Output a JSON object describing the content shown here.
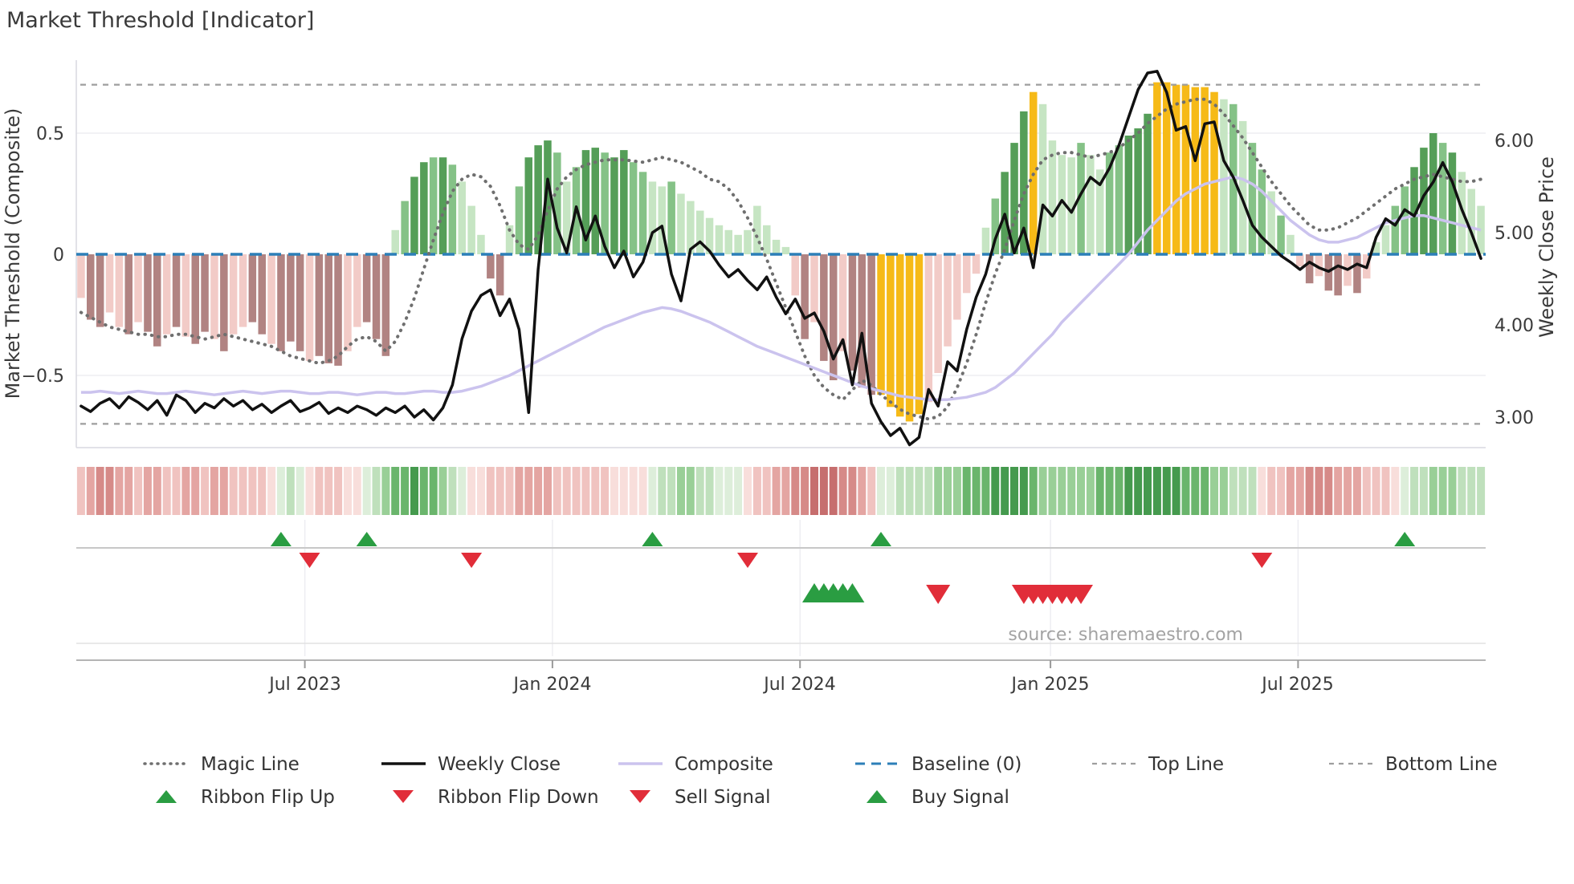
{
  "page": {
    "title": "Market Threshold [Indicator]",
    "source_note": "source: sharemaestro.com"
  },
  "axes": {
    "left_title": "Market Threshold (Composite)",
    "right_title": "Weekly Close Price",
    "left_ticks": [
      "0.5",
      "0",
      "−0.5"
    ],
    "right_ticks": [
      "6.00",
      "5.00",
      "4.00",
      "3.00"
    ],
    "x_ticks": [
      "Jul 2023",
      "Jan 2024",
      "Jul 2024",
      "Jan 2025",
      "Jul 2025"
    ]
  },
  "legend": {
    "rows": [
      [
        {
          "label": "Magic Line"
        },
        {
          "label": "Weekly Close"
        },
        {
          "label": "Composite"
        },
        {
          "label": "Baseline (0)"
        },
        {
          "label": "Top Line"
        },
        {
          "label": "Bottom Line"
        }
      ],
      [
        {
          "label": "Ribbon Flip Up"
        },
        {
          "label": "Ribbon Flip Down"
        },
        {
          "label": "Sell Signal"
        },
        {
          "label": "Buy Signal"
        }
      ]
    ]
  },
  "chart_data": {
    "type": "bar",
    "title": "Market Threshold [Indicator]",
    "n_weeks": 148,
    "x_range_note": "weekly data, approx Jan 2023 to Nov 2025",
    "x_tick_weeks": [
      23.5,
      49.5,
      75.5,
      101.8,
      127.8
    ],
    "x_tick_labels": [
      "Jul 2023",
      "Jan 2024",
      "Jul 2024",
      "Jan 2025",
      "Jul 2025"
    ],
    "left_axis": {
      "label": "Market Threshold (Composite)",
      "ticks": [
        0.5,
        0,
        -0.5
      ],
      "baseline": 0,
      "top_line": 0.7,
      "bottom_line": -0.7,
      "ylim": [
        -0.8,
        0.805
      ]
    },
    "right_axis": {
      "label": "Weekly Close Price",
      "ticks": [
        6.0,
        5.0,
        4.0,
        3.0
      ],
      "ylim": [
        2.67,
        6.87
      ]
    },
    "grid": "faint horizontal at 0.5 and -0.5; faint vertical in signal panel at x ticks",
    "legend_position": "bottom, two centered rows",
    "series": {
      "threshold_bars": {
        "values": [
          -0.18,
          -0.27,
          -0.3,
          -0.24,
          -0.3,
          -0.33,
          -0.28,
          -0.32,
          -0.38,
          -0.33,
          -0.3,
          -0.34,
          -0.37,
          -0.32,
          -0.35,
          -0.4,
          -0.33,
          -0.3,
          -0.28,
          -0.33,
          -0.37,
          -0.4,
          -0.36,
          -0.4,
          -0.44,
          -0.42,
          -0.45,
          -0.46,
          -0.4,
          -0.3,
          -0.28,
          -0.35,
          -0.42,
          0.1,
          0.22,
          0.32,
          0.38,
          0.4,
          0.4,
          0.37,
          0.3,
          0.2,
          0.08,
          -0.1,
          -0.17,
          0.12,
          0.28,
          0.4,
          0.45,
          0.47,
          0.42,
          0.3,
          0.36,
          0.43,
          0.44,
          0.42,
          0.4,
          0.43,
          0.38,
          0.34,
          0.3,
          0.28,
          0.3,
          0.25,
          0.22,
          0.18,
          0.15,
          0.12,
          0.1,
          0.08,
          0.1,
          0.2,
          0.12,
          0.06,
          0.03,
          -0.17,
          -0.35,
          -0.28,
          -0.44,
          -0.52,
          -0.4,
          -0.48,
          -0.55,
          -0.58,
          -0.58,
          -0.63,
          -0.67,
          -0.69,
          -0.66,
          -0.61,
          -0.49,
          -0.38,
          -0.27,
          -0.16,
          -0.08,
          0.11,
          0.23,
          0.34,
          0.46,
          0.59,
          0.67,
          0.62,
          0.47,
          0.41,
          0.4,
          0.46,
          0.41,
          0.35,
          0.42,
          0.45,
          0.49,
          0.52,
          0.58,
          0.71,
          0.71,
          0.7,
          0.7,
          0.69,
          0.69,
          0.67,
          0.64,
          0.62,
          0.55,
          0.46,
          0.35,
          0.26,
          0.16,
          0.08,
          -0.05,
          -0.12,
          -0.09,
          -0.15,
          -0.17,
          -0.13,
          -0.16,
          -0.1,
          0.05,
          0.12,
          0.2,
          0.28,
          0.36,
          0.44,
          0.5,
          0.46,
          0.42,
          0.34,
          0.27,
          0.2
        ],
        "colors": [
          "lp",
          "dp",
          "dp",
          "lp",
          "lp",
          "dp",
          "lp",
          "dp",
          "dp",
          "lp",
          "dp",
          "lp",
          "dp",
          "dp",
          "lp",
          "dp",
          "lp",
          "lp",
          "dp",
          "dp",
          "lp",
          "dp",
          "dp",
          "dp",
          "lp",
          "dp",
          "dp",
          "dp",
          "lp",
          "lp",
          "dp",
          "dp",
          "dp",
          "lg",
          "mg",
          "dg",
          "dg",
          "mg",
          "dg",
          "mg",
          "lg",
          "lg",
          "lg",
          "dp",
          "dp",
          "lg",
          "mg",
          "dg",
          "dg",
          "dg",
          "mg",
          "lg",
          "mg",
          "dg",
          "dg",
          "mg",
          "dg",
          "dg",
          "mg",
          "mg",
          "lg",
          "lg",
          "mg",
          "lg",
          "lg",
          "lg",
          "lg",
          "lg",
          "lg",
          "lg",
          "lg",
          "lg",
          "lg",
          "lg",
          "lg",
          "lp",
          "dp",
          "lp",
          "dp",
          "dp",
          "lp",
          "dp",
          "dp",
          "dp",
          "Y",
          "Y",
          "Y",
          "Y",
          "Y",
          "lp",
          "lp",
          "lp",
          "lp",
          "lp",
          "lp",
          "lg",
          "mg",
          "dg",
          "dg",
          "dg",
          "Y",
          "lg",
          "lg",
          "lg",
          "lg",
          "mg",
          "lg",
          "lg",
          "mg",
          "mg",
          "dg",
          "dg",
          "dg",
          "Y",
          "Y",
          "Y",
          "Y",
          "Y",
          "Y",
          "Y",
          "lg",
          "mg",
          "lg",
          "mg",
          "mg",
          "lg",
          "mg",
          "lg",
          "lp",
          "dp",
          "lp",
          "dp",
          "dp",
          "lp",
          "dp",
          "lp",
          "lg",
          "lg",
          "mg",
          "mg",
          "dg",
          "dg",
          "dg",
          "mg",
          "dg",
          "lg",
          "lg",
          "lg"
        ]
      },
      "magic_line": [
        -0.24,
        -0.26,
        -0.28,
        -0.3,
        -0.31,
        -0.32,
        -0.33,
        -0.33,
        -0.34,
        -0.34,
        -0.33,
        -0.33,
        -0.34,
        -0.35,
        -0.34,
        -0.33,
        -0.34,
        -0.35,
        -0.36,
        -0.37,
        -0.38,
        -0.4,
        -0.42,
        -0.43,
        -0.44,
        -0.45,
        -0.44,
        -0.42,
        -0.38,
        -0.35,
        -0.34,
        -0.36,
        -0.4,
        -0.36,
        -0.28,
        -0.18,
        -0.06,
        0.06,
        0.17,
        0.26,
        0.31,
        0.33,
        0.32,
        0.28,
        0.2,
        0.1,
        0.04,
        0.02,
        0.08,
        0.18,
        0.27,
        0.32,
        0.35,
        0.37,
        0.38,
        0.39,
        0.39,
        0.39,
        0.385,
        0.38,
        0.39,
        0.4,
        0.39,
        0.38,
        0.36,
        0.34,
        0.31,
        0.3,
        0.27,
        0.22,
        0.15,
        0.07,
        -0.02,
        -0.12,
        -0.22,
        -0.32,
        -0.42,
        -0.5,
        -0.55,
        -0.58,
        -0.6,
        -0.56,
        -0.52,
        -0.54,
        -0.58,
        -0.61,
        -0.64,
        -0.66,
        -0.67,
        -0.68,
        -0.67,
        -0.63,
        -0.55,
        -0.45,
        -0.33,
        -0.2,
        -0.08,
        0.02,
        0.14,
        0.25,
        0.33,
        0.39,
        0.41,
        0.42,
        0.42,
        0.41,
        0.4,
        0.41,
        0.42,
        0.44,
        0.47,
        0.5,
        0.54,
        0.57,
        0.6,
        0.62,
        0.63,
        0.64,
        0.64,
        0.62,
        0.58,
        0.53,
        0.48,
        0.42,
        0.36,
        0.3,
        0.25,
        0.2,
        0.16,
        0.12,
        0.1,
        0.1,
        0.11,
        0.13,
        0.15,
        0.18,
        0.21,
        0.24,
        0.27,
        0.29,
        0.31,
        0.32,
        0.33,
        0.32,
        0.31,
        0.3,
        0.3,
        0.31
      ],
      "composite_line": [
        -0.57,
        -0.57,
        -0.565,
        -0.57,
        -0.575,
        -0.57,
        -0.565,
        -0.57,
        -0.575,
        -0.575,
        -0.57,
        -0.565,
        -0.57,
        -0.575,
        -0.58,
        -0.575,
        -0.57,
        -0.565,
        -0.57,
        -0.575,
        -0.57,
        -0.565,
        -0.565,
        -0.57,
        -0.575,
        -0.575,
        -0.57,
        -0.57,
        -0.575,
        -0.58,
        -0.575,
        -0.57,
        -0.57,
        -0.575,
        -0.575,
        -0.57,
        -0.565,
        -0.565,
        -0.57,
        -0.57,
        -0.565,
        -0.555,
        -0.545,
        -0.53,
        -0.515,
        -0.5,
        -0.48,
        -0.46,
        -0.44,
        -0.42,
        -0.4,
        -0.38,
        -0.36,
        -0.34,
        -0.32,
        -0.3,
        -0.285,
        -0.27,
        -0.255,
        -0.24,
        -0.23,
        -0.22,
        -0.225,
        -0.235,
        -0.25,
        -0.265,
        -0.28,
        -0.3,
        -0.32,
        -0.34,
        -0.36,
        -0.38,
        -0.395,
        -0.41,
        -0.425,
        -0.44,
        -0.455,
        -0.47,
        -0.485,
        -0.5,
        -0.515,
        -0.53,
        -0.545,
        -0.555,
        -0.565,
        -0.575,
        -0.585,
        -0.59,
        -0.595,
        -0.6,
        -0.6,
        -0.6,
        -0.595,
        -0.59,
        -0.58,
        -0.57,
        -0.55,
        -0.52,
        -0.49,
        -0.45,
        -0.41,
        -0.37,
        -0.33,
        -0.28,
        -0.24,
        -0.2,
        -0.16,
        -0.12,
        -0.08,
        -0.04,
        0.0,
        0.05,
        0.1,
        0.14,
        0.18,
        0.22,
        0.25,
        0.27,
        0.29,
        0.3,
        0.31,
        0.32,
        0.31,
        0.29,
        0.26,
        0.22,
        0.18,
        0.14,
        0.11,
        0.08,
        0.06,
        0.05,
        0.05,
        0.06,
        0.07,
        0.09,
        0.11,
        0.13,
        0.14,
        0.15,
        0.16,
        0.16,
        0.15,
        0.14,
        0.13,
        0.12,
        0.11,
        0.1
      ],
      "weekly_close": [
        3.12,
        3.06,
        3.15,
        3.2,
        3.1,
        3.22,
        3.16,
        3.08,
        3.18,
        3.02,
        3.24,
        3.18,
        3.05,
        3.15,
        3.1,
        3.2,
        3.12,
        3.18,
        3.08,
        3.14,
        3.05,
        3.12,
        3.18,
        3.06,
        3.1,
        3.16,
        3.04,
        3.1,
        3.05,
        3.12,
        3.08,
        3.02,
        3.1,
        3.05,
        3.12,
        3.0,
        3.08,
        2.97,
        3.1,
        3.35,
        3.85,
        4.15,
        4.32,
        4.38,
        4.1,
        4.28,
        3.95,
        3.05,
        4.6,
        5.58,
        5.05,
        4.78,
        5.28,
        4.92,
        5.18,
        4.85,
        4.62,
        4.8,
        4.52,
        4.68,
        5.0,
        5.07,
        4.55,
        4.26,
        4.82,
        4.9,
        4.8,
        4.65,
        4.52,
        4.6,
        4.48,
        4.38,
        4.52,
        4.3,
        4.12,
        4.28,
        4.07,
        4.13,
        3.93,
        3.63,
        3.84,
        3.35,
        3.91,
        3.15,
        2.95,
        2.8,
        2.88,
        2.7,
        2.78,
        3.3,
        3.12,
        3.6,
        3.5,
        3.95,
        4.3,
        4.55,
        4.93,
        5.2,
        4.78,
        5.05,
        4.62,
        5.3,
        5.18,
        5.35,
        5.22,
        5.42,
        5.6,
        5.52,
        5.7,
        5.95,
        6.25,
        6.55,
        6.73,
        6.75,
        6.52,
        6.11,
        6.15,
        5.78,
        6.18,
        6.2,
        5.78,
        5.6,
        5.35,
        5.08,
        4.95,
        4.85,
        4.75,
        4.68,
        4.6,
        4.68,
        4.62,
        4.58,
        4.64,
        4.6,
        4.66,
        4.62,
        4.95,
        5.15,
        5.08,
        5.25,
        5.18,
        5.4,
        5.55,
        5.76,
        5.55,
        5.25,
        5.0,
        4.72
      ],
      "ribbon": [
        "p2",
        "p3",
        "p4",
        "p4",
        "p3",
        "p3",
        "p2",
        "p3",
        "p3",
        "p2",
        "p2",
        "p3",
        "p3",
        "p2",
        "p3",
        "p3",
        "p2",
        "p2",
        "p2",
        "p2",
        "p1",
        "g1",
        "g2",
        "g1",
        "p1",
        "p2",
        "p2",
        "p2",
        "p1",
        "p1",
        "g1",
        "g2",
        "g3",
        "g4",
        "g4",
        "g5",
        "g4",
        "g4",
        "g3",
        "g2",
        "g1",
        "p1",
        "p1",
        "p2",
        "p2",
        "p2",
        "p3",
        "p3",
        "p3",
        "p3",
        "p2",
        "p2",
        "p2",
        "p2",
        "p2",
        "p2",
        "p1",
        "p1",
        "p1",
        "p1",
        "g1",
        "g2",
        "g2",
        "g3",
        "g3",
        "g2",
        "g2",
        "g1",
        "g1",
        "g1",
        "p1",
        "p2",
        "p2",
        "p3",
        "p3",
        "p4",
        "p4",
        "p5",
        "p5",
        "p5",
        "p4",
        "p4",
        "p3",
        "p2",
        "g1",
        "g1",
        "g2",
        "g2",
        "g2",
        "g2",
        "g3",
        "g3",
        "g3",
        "g4",
        "g4",
        "g4",
        "g5",
        "g5",
        "g5",
        "g5",
        "g4",
        "g3",
        "g3",
        "g3",
        "g3",
        "g3",
        "g3",
        "g4",
        "g4",
        "g4",
        "g5",
        "g5",
        "g5",
        "g5",
        "g5",
        "g5",
        "g4",
        "g4",
        "g4",
        "g3",
        "g3",
        "g2",
        "g2",
        "g2",
        "p1",
        "p2",
        "p2",
        "p3",
        "p3",
        "p4",
        "p4",
        "p4",
        "p3",
        "p3",
        "p3",
        "p2",
        "p2",
        "p2",
        "p1",
        "g1",
        "g2",
        "g2",
        "g3",
        "g3",
        "g3",
        "g2",
        "g2",
        "g2"
      ],
      "signals": {
        "ribbon_flip_up_weeks": [
          21,
          30,
          60,
          84,
          139
        ],
        "ribbon_flip_down_weeks": [
          24,
          41,
          70,
          124
        ],
        "buy_weeks": [
          77,
          78,
          79,
          80,
          81
        ],
        "sell_weeks": [
          90,
          99,
          100,
          101,
          102,
          103,
          104,
          105
        ]
      }
    },
    "colors": {
      "bar": {
        "lp": "#f2cbc7",
        "dp": "#b18382",
        "lg": "#c6e5c3",
        "mg": "#85c287",
        "dg": "#559e58",
        "Y": "#f6ba17"
      },
      "ribbon": {
        "p1": "#f8dedb",
        "p2": "#f0c3c0",
        "p3": "#e4a5a2",
        "p4": "#d68a88",
        "p5": "#c66e6e",
        "g1": "#ddeeda",
        "g2": "#bfe0bc",
        "g3": "#99cf97",
        "g4": "#6ab56c",
        "g5": "#459a4e"
      },
      "weekly_close": "#111111",
      "magic_line": "#6f6f6f",
      "composite_line": "#cbc3ee",
      "baseline": "#2c7fb8",
      "band_lines": "#9e9e9e",
      "buy": "#2a9d42",
      "sell": "#e12d39",
      "grid": "#ededf2",
      "spine": "#d9d9e0",
      "signal_axis": "#b4b4b4"
    }
  }
}
